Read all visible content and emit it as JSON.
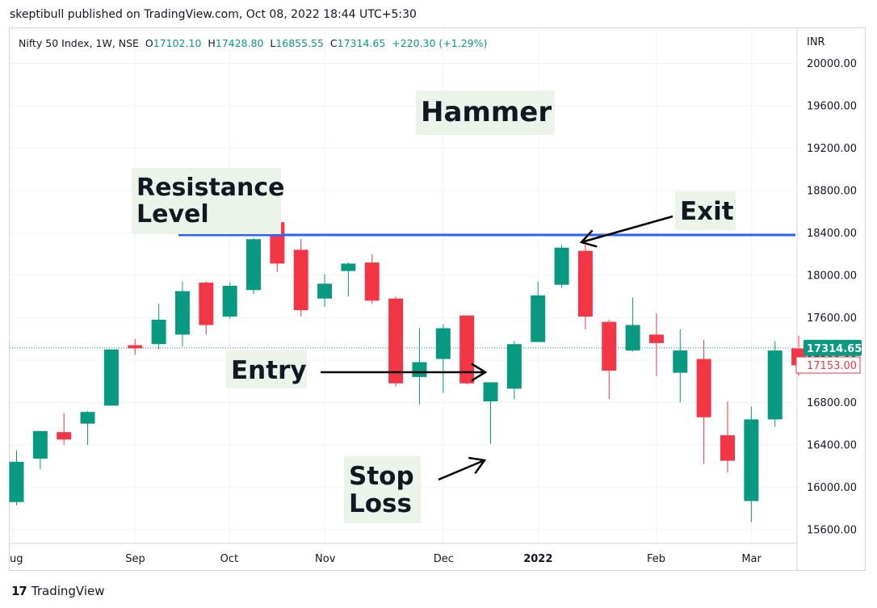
{
  "header": {
    "text": "skeptibull published on TradingView.com, Oct 08, 2022 18:44 UTC+5:30"
  },
  "footer": {
    "logo": "17",
    "text": "TradingView"
  },
  "colors": {
    "up": "#089981",
    "down": "#f23645",
    "resistance_line": "#2962ff",
    "current_price_line": "#089981",
    "note_background": "#ecf4ea",
    "grid": "#f0f3fa"
  },
  "chart_data": {
    "type": "candlestick",
    "title": "Hammer",
    "symbol_line": {
      "symbol": "Nifty 50 Index, 1W, NSE",
      "open_label": "O",
      "open": "17102.10",
      "high_label": "H",
      "high": "17428.80",
      "low_label": "L",
      "low": "16855.55",
      "close_label": "C",
      "close": "17314.65",
      "change": "+220.30 (+1.29%)"
    },
    "currency": "INR",
    "y_ticks": [
      "20000.00",
      "19600.00",
      "19200.00",
      "18800.00",
      "18400.00",
      "18000.00",
      "17600.00",
      "17200.00",
      "16800.00",
      "16400.00",
      "16000.00",
      "15600.00"
    ],
    "ylim": [
      15470,
      20330
    ],
    "x_ticks": [
      {
        "label": "ug",
        "index": 0,
        "bold": false
      },
      {
        "label": "Sep",
        "index": 5,
        "bold": false
      },
      {
        "label": "Oct",
        "index": 9,
        "bold": false
      },
      {
        "label": "Nov",
        "index": 13,
        "bold": false
      },
      {
        "label": "Dec",
        "index": 18,
        "bold": false
      },
      {
        "label": "2022",
        "index": 22,
        "bold": true
      },
      {
        "label": "Feb",
        "index": 27,
        "bold": false
      },
      {
        "label": "Mar",
        "index": 31,
        "bold": false
      }
    ],
    "candles": [
      {
        "o": 15860,
        "h": 16350,
        "l": 15830,
        "c": 16240
      },
      {
        "o": 16270,
        "h": 16530,
        "l": 16170,
        "c": 16530
      },
      {
        "o": 16520,
        "h": 16700,
        "l": 16400,
        "c": 16450
      },
      {
        "o": 16600,
        "h": 16720,
        "l": 16400,
        "c": 16710
      },
      {
        "o": 16770,
        "h": 17300,
        "l": 16770,
        "c": 17300
      },
      {
        "o": 17340,
        "h": 17400,
        "l": 17250,
        "c": 17310
      },
      {
        "o": 17350,
        "h": 17730,
        "l": 17300,
        "c": 17580
      },
      {
        "o": 17440,
        "h": 17940,
        "l": 17330,
        "c": 17850
      },
      {
        "o": 17930,
        "h": 17940,
        "l": 17440,
        "c": 17530
      },
      {
        "o": 17610,
        "h": 17930,
        "l": 17590,
        "c": 17900
      },
      {
        "o": 17860,
        "h": 18350,
        "l": 17820,
        "c": 18340
      },
      {
        "o": 18500,
        "h": 18600,
        "l": 18030,
        "c": 18110
      },
      {
        "o": 18240,
        "h": 18340,
        "l": 17610,
        "c": 17670
      },
      {
        "o": 17780,
        "h": 18010,
        "l": 17700,
        "c": 17920
      },
      {
        "o": 18040,
        "h": 18120,
        "l": 17800,
        "c": 18110
      },
      {
        "o": 18120,
        "h": 18200,
        "l": 17730,
        "c": 17760
      },
      {
        "o": 17780,
        "h": 17800,
        "l": 16950,
        "c": 16980
      },
      {
        "o": 17040,
        "h": 17500,
        "l": 16780,
        "c": 17180
      },
      {
        "o": 17210,
        "h": 17540,
        "l": 16890,
        "c": 17500
      },
      {
        "o": 17620,
        "h": 17620,
        "l": 16970,
        "c": 16980
      },
      {
        "o": 16810,
        "h": 16990,
        "l": 16410,
        "c": 16990
      },
      {
        "o": 16930,
        "h": 17380,
        "l": 16830,
        "c": 17350
      },
      {
        "o": 17370,
        "h": 17940,
        "l": 17370,
        "c": 17810
      },
      {
        "o": 17910,
        "h": 18290,
        "l": 17880,
        "c": 18260
      },
      {
        "o": 18230,
        "h": 18290,
        "l": 17490,
        "c": 17610
      },
      {
        "o": 17560,
        "h": 17580,
        "l": 16830,
        "c": 17100
      },
      {
        "o": 17290,
        "h": 17790,
        "l": 17280,
        "c": 17530
      },
      {
        "o": 17440,
        "h": 17640,
        "l": 17050,
        "c": 17360
      },
      {
        "o": 17080,
        "h": 17490,
        "l": 16800,
        "c": 17290
      },
      {
        "o": 17210,
        "h": 17390,
        "l": 16220,
        "c": 16660
      },
      {
        "o": 16490,
        "h": 16810,
        "l": 16140,
        "c": 16250
      },
      {
        "o": 15870,
        "h": 16760,
        "l": 15670,
        "c": 16640
      },
      {
        "o": 16640,
        "h": 17380,
        "l": 16570,
        "c": 17290
      },
      {
        "o": 17310,
        "h": 17430,
        "l": 17050,
        "c": 17150
      }
    ],
    "resistance_level": 18380,
    "price_labels": [
      {
        "text": "17314.65",
        "value": 17314.65,
        "style": "filled"
      },
      {
        "text": "17153.00",
        "value": 17153.0,
        "style": "outline"
      }
    ],
    "annotations": {
      "title_box": "Hammer",
      "resistance": [
        "Resistance",
        "Level"
      ],
      "exit": "Exit",
      "entry": "Entry",
      "stop_loss": [
        "Stop",
        "Loss"
      ]
    }
  }
}
